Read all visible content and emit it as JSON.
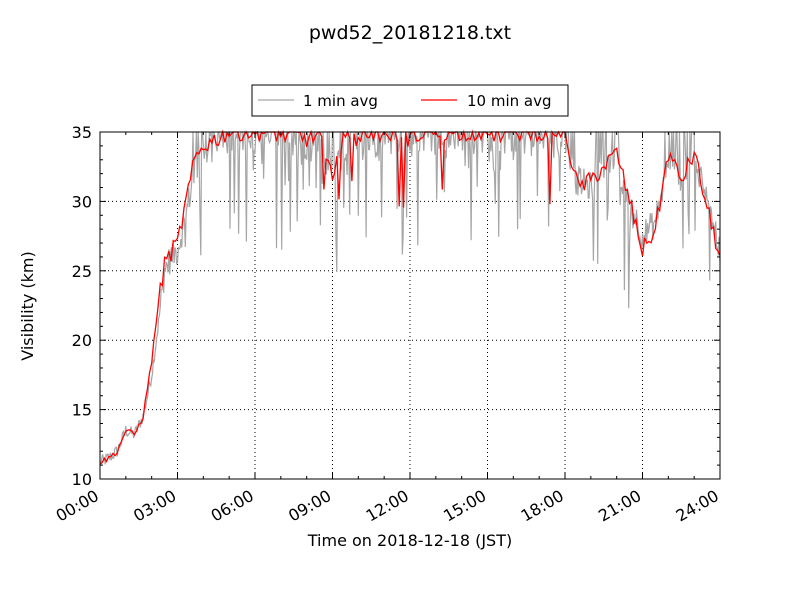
{
  "chart_data": {
    "type": "line",
    "title": "pwd52_20181218.txt",
    "xlabel": "Time on 2018-12-18 (JST)",
    "ylabel": "Visibility (km)",
    "xlim": [
      "2018-12-18 00:00",
      "2018-12-19 00:00"
    ],
    "ylim": [
      10,
      35
    ],
    "x_tick_labels": [
      "00:00",
      "03:00",
      "06:00",
      "09:00",
      "12:00",
      "15:00",
      "18:00",
      "21:00",
      "24:00"
    ],
    "y_ticks": [
      10,
      15,
      20,
      25,
      30,
      35
    ],
    "grid": true,
    "legend_placement": "top-center",
    "colors": {
      "one_min": "#a6a6a6",
      "ten_min": "#ff0000"
    },
    "series": [
      {
        "name": "1 min avg",
        "kind": "noisy",
        "x": [
          "00:00",
          "00:20",
          "00:40",
          "01:00",
          "01:20",
          "01:40",
          "02:00",
          "02:15",
          "02:30",
          "02:45",
          "03:00",
          "03:20",
          "03:40",
          "04:00",
          "04:30",
          "05:00",
          "06:00",
          "06:30",
          "07:00",
          "07:30",
          "08:00",
          "08:30",
          "09:00",
          "09:30",
          "10:00",
          "10:30",
          "11:00",
          "11:30",
          "12:00",
          "12:30",
          "13:00",
          "13:30",
          "14:00",
          "14:30",
          "15:00",
          "15:30",
          "16:00",
          "16:30",
          "17:00",
          "17:30",
          "18:00",
          "18:30",
          "19:00",
          "19:30",
          "20:00",
          "20:30",
          "21:00",
          "21:30",
          "22:00",
          "22:30",
          "23:00",
          "23:30",
          "24:00"
        ],
        "values": [
          11.2,
          11.5,
          12.0,
          13.5,
          13.2,
          14.5,
          17.5,
          21.0,
          25.0,
          26.0,
          26.5,
          29.0,
          32.5,
          33.5,
          34.0,
          34.5,
          34.5,
          34.5,
          34.2,
          34.0,
          33.5,
          33.8,
          32.0,
          34.0,
          33.5,
          34.0,
          33.5,
          34.0,
          33.8,
          34.5,
          34.5,
          34.0,
          34.5,
          34.5,
          34.0,
          33.5,
          34.5,
          34.2,
          34.5,
          34.0,
          34.5,
          31.5,
          31.0,
          32.5,
          33.0,
          30.0,
          27.5,
          28.5,
          33.0,
          31.5,
          33.5,
          30.0,
          26.5
        ]
      },
      {
        "name": "10 min avg",
        "kind": "smooth",
        "x": [
          "00:00",
          "00:20",
          "00:40",
          "01:00",
          "01:20",
          "01:40",
          "02:00",
          "02:15",
          "02:30",
          "02:45",
          "03:00",
          "03:20",
          "03:40",
          "04:00",
          "04:30",
          "05:00",
          "06:00",
          "06:30",
          "07:00",
          "07:30",
          "08:00",
          "08:30",
          "09:00",
          "09:30",
          "10:00",
          "10:30",
          "11:00",
          "11:30",
          "12:00",
          "12:30",
          "13:00",
          "13:30",
          "14:00",
          "14:30",
          "15:00",
          "15:30",
          "16:00",
          "16:30",
          "17:00",
          "17:30",
          "18:00",
          "18:30",
          "19:00",
          "19:30",
          "20:00",
          "20:30",
          "21:00",
          "21:30",
          "22:00",
          "22:30",
          "23:00",
          "23:30",
          "24:00"
        ],
        "values": [
          11.2,
          11.5,
          12.0,
          13.5,
          13.2,
          14.5,
          18.5,
          22.5,
          25.5,
          26.3,
          27.0,
          30.0,
          33.0,
          34.0,
          34.5,
          35.0,
          35.0,
          35.0,
          34.8,
          34.8,
          34.5,
          34.8,
          32.0,
          34.8,
          34.5,
          35.0,
          34.8,
          35.0,
          34.5,
          35.0,
          35.0,
          35.0,
          35.0,
          35.0,
          35.0,
          34.8,
          35.0,
          35.0,
          35.0,
          35.0,
          35.0,
          31.0,
          31.5,
          32.5,
          33.5,
          30.0,
          26.5,
          28.0,
          33.5,
          31.5,
          33.5,
          29.5,
          26.0
        ]
      }
    ]
  }
}
